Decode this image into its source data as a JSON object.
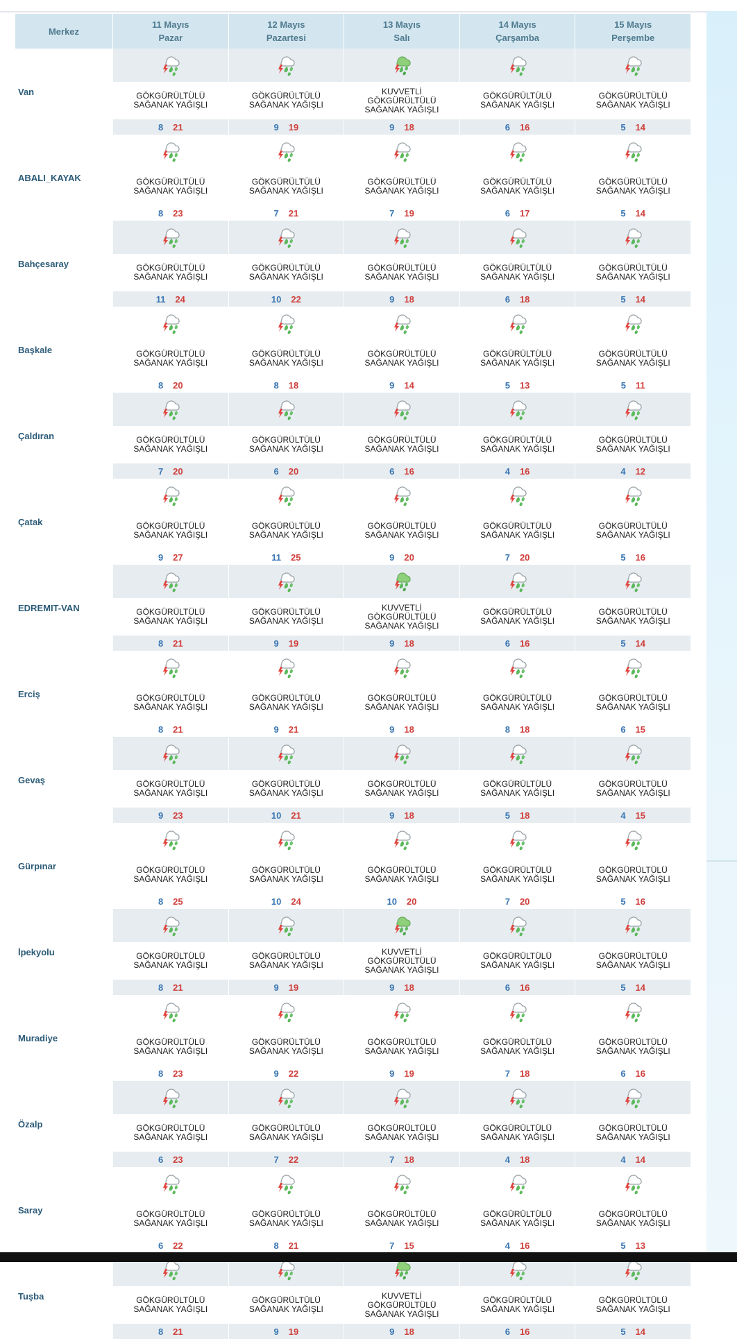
{
  "header": {
    "merkez": "Merkez",
    "days": [
      {
        "date": "11 Mayıs",
        "weekday": "Pazar"
      },
      {
        "date": "12 Mayıs",
        "weekday": "Pazartesi"
      },
      {
        "date": "13 Mayıs",
        "weekday": "Salı"
      },
      {
        "date": "14 Mayıs",
        "weekday": "Çarşamba"
      },
      {
        "date": "15 Mayıs",
        "weekday": "Perşembe"
      }
    ]
  },
  "icons": {
    "thunder": "thunderstorm-showers-icon",
    "strong": "strong-thunderstorm-icon"
  },
  "colors": {
    "min": "#3a77b3",
    "max": "#d0403c",
    "header_bg": "#d3e6ef",
    "shade": "#e6ecf0"
  },
  "rows": [
    {
      "city": "Van",
      "days": [
        {
          "l1": "GÖKGÜRÜLTÜLÜ",
          "l2": "SAĞANAK YAĞIŞLI",
          "l3": "",
          "min": "8",
          "max": "21",
          "icon": "thunder"
        },
        {
          "l1": "GÖKGÜRÜLTÜLÜ",
          "l2": "SAĞANAK YAĞIŞLI",
          "l3": "",
          "min": "9",
          "max": "19",
          "icon": "thunder"
        },
        {
          "l1": "KUVVETLİ",
          "l2": "GÖKGÜRÜLTÜLÜ",
          "l3": "SAĞANAK YAĞIŞLI",
          "min": "9",
          "max": "18",
          "icon": "strong"
        },
        {
          "l1": "GÖKGÜRÜLTÜLÜ",
          "l2": "SAĞANAK YAĞIŞLI",
          "l3": "",
          "min": "6",
          "max": "16",
          "icon": "thunder"
        },
        {
          "l1": "GÖKGÜRÜLTÜLÜ",
          "l2": "SAĞANAK YAĞIŞLI",
          "l3": "",
          "min": "5",
          "max": "14",
          "icon": "thunder"
        }
      ]
    },
    {
      "city": "ABALI_KAYAK",
      "days": [
        {
          "l1": "GÖKGÜRÜLTÜLÜ",
          "l2": "SAĞANAK YAĞIŞLI",
          "l3": "",
          "min": "8",
          "max": "23",
          "icon": "thunder"
        },
        {
          "l1": "GÖKGÜRÜLTÜLÜ",
          "l2": "SAĞANAK YAĞIŞLI",
          "l3": "",
          "min": "7",
          "max": "21",
          "icon": "thunder"
        },
        {
          "l1": "GÖKGÜRÜLTÜLÜ",
          "l2": "SAĞANAK YAĞIŞLI",
          "l3": "",
          "min": "7",
          "max": "19",
          "icon": "thunder"
        },
        {
          "l1": "GÖKGÜRÜLTÜLÜ",
          "l2": "SAĞANAK YAĞIŞLI",
          "l3": "",
          "min": "6",
          "max": "17",
          "icon": "thunder"
        },
        {
          "l1": "GÖKGÜRÜLTÜLÜ",
          "l2": "SAĞANAK YAĞIŞLI",
          "l3": "",
          "min": "5",
          "max": "14",
          "icon": "thunder"
        }
      ]
    },
    {
      "city": "Bahçesaray",
      "days": [
        {
          "l1": "GÖKGÜRÜLTÜLÜ",
          "l2": "SAĞANAK YAĞIŞLI",
          "l3": "",
          "min": "11",
          "max": "24",
          "icon": "thunder"
        },
        {
          "l1": "GÖKGÜRÜLTÜLÜ",
          "l2": "SAĞANAK YAĞIŞLI",
          "l3": "",
          "min": "10",
          "max": "22",
          "icon": "thunder"
        },
        {
          "l1": "GÖKGÜRÜLTÜLÜ",
          "l2": "SAĞANAK YAĞIŞLI",
          "l3": "",
          "min": "9",
          "max": "18",
          "icon": "thunder"
        },
        {
          "l1": "GÖKGÜRÜLTÜLÜ",
          "l2": "SAĞANAK YAĞIŞLI",
          "l3": "",
          "min": "6",
          "max": "18",
          "icon": "thunder"
        },
        {
          "l1": "GÖKGÜRÜLTÜLÜ",
          "l2": "SAĞANAK YAĞIŞLI",
          "l3": "",
          "min": "5",
          "max": "14",
          "icon": "thunder"
        }
      ]
    },
    {
      "city": "Başkale",
      "days": [
        {
          "l1": "GÖKGÜRÜLTÜLÜ",
          "l2": "SAĞANAK YAĞIŞLI",
          "l3": "",
          "min": "8",
          "max": "20",
          "icon": "thunder"
        },
        {
          "l1": "GÖKGÜRÜLTÜLÜ",
          "l2": "SAĞANAK YAĞIŞLI",
          "l3": "",
          "min": "8",
          "max": "18",
          "icon": "thunder"
        },
        {
          "l1": "GÖKGÜRÜLTÜLÜ",
          "l2": "SAĞANAK YAĞIŞLI",
          "l3": "",
          "min": "9",
          "max": "14",
          "icon": "thunder"
        },
        {
          "l1": "GÖKGÜRÜLTÜLÜ",
          "l2": "SAĞANAK YAĞIŞLI",
          "l3": "",
          "min": "5",
          "max": "13",
          "icon": "thunder"
        },
        {
          "l1": "GÖKGÜRÜLTÜLÜ",
          "l2": "SAĞANAK YAĞIŞLI",
          "l3": "",
          "min": "5",
          "max": "11",
          "icon": "thunder"
        }
      ]
    },
    {
      "city": "Çaldıran",
      "days": [
        {
          "l1": "GÖKGÜRÜLTÜLÜ",
          "l2": "SAĞANAK YAĞIŞLI",
          "l3": "",
          "min": "7",
          "max": "20",
          "icon": "thunder"
        },
        {
          "l1": "GÖKGÜRÜLTÜLÜ",
          "l2": "SAĞANAK YAĞIŞLI",
          "l3": "",
          "min": "6",
          "max": "20",
          "icon": "thunder"
        },
        {
          "l1": "GÖKGÜRÜLTÜLÜ",
          "l2": "SAĞANAK YAĞIŞLI",
          "l3": "",
          "min": "6",
          "max": "16",
          "icon": "thunder"
        },
        {
          "l1": "GÖKGÜRÜLTÜLÜ",
          "l2": "SAĞANAK YAĞIŞLI",
          "l3": "",
          "min": "4",
          "max": "16",
          "icon": "thunder"
        },
        {
          "l1": "GÖKGÜRÜLTÜLÜ",
          "l2": "SAĞANAK YAĞIŞLI",
          "l3": "",
          "min": "4",
          "max": "12",
          "icon": "thunder"
        }
      ]
    },
    {
      "city": "Çatak",
      "days": [
        {
          "l1": "GÖKGÜRÜLTÜLÜ",
          "l2": "SAĞANAK YAĞIŞLI",
          "l3": "",
          "min": "9",
          "max": "27",
          "icon": "thunder"
        },
        {
          "l1": "GÖKGÜRÜLTÜLÜ",
          "l2": "SAĞANAK YAĞIŞLI",
          "l3": "",
          "min": "11",
          "max": "25",
          "icon": "thunder"
        },
        {
          "l1": "GÖKGÜRÜLTÜLÜ",
          "l2": "SAĞANAK YAĞIŞLI",
          "l3": "",
          "min": "9",
          "max": "20",
          "icon": "thunder"
        },
        {
          "l1": "GÖKGÜRÜLTÜLÜ",
          "l2": "SAĞANAK YAĞIŞLI",
          "l3": "",
          "min": "7",
          "max": "20",
          "icon": "thunder"
        },
        {
          "l1": "GÖKGÜRÜLTÜLÜ",
          "l2": "SAĞANAK YAĞIŞLI",
          "l3": "",
          "min": "5",
          "max": "16",
          "icon": "thunder"
        }
      ]
    },
    {
      "city": "EDREMIT-VAN",
      "days": [
        {
          "l1": "GÖKGÜRÜLTÜLÜ",
          "l2": "SAĞANAK YAĞIŞLI",
          "l3": "",
          "min": "8",
          "max": "21",
          "icon": "thunder"
        },
        {
          "l1": "GÖKGÜRÜLTÜLÜ",
          "l2": "SAĞANAK YAĞIŞLI",
          "l3": "",
          "min": "9",
          "max": "19",
          "icon": "thunder"
        },
        {
          "l1": "KUVVETLİ",
          "l2": "GÖKGÜRÜLTÜLÜ",
          "l3": "SAĞANAK YAĞIŞLI",
          "min": "9",
          "max": "18",
          "icon": "strong"
        },
        {
          "l1": "GÖKGÜRÜLTÜLÜ",
          "l2": "SAĞANAK YAĞIŞLI",
          "l3": "",
          "min": "6",
          "max": "16",
          "icon": "thunder"
        },
        {
          "l1": "GÖKGÜRÜLTÜLÜ",
          "l2": "SAĞANAK YAĞIŞLI",
          "l3": "",
          "min": "5",
          "max": "14",
          "icon": "thunder"
        }
      ]
    },
    {
      "city": "Erciş",
      "days": [
        {
          "l1": "GÖKGÜRÜLTÜLÜ",
          "l2": "SAĞANAK YAĞIŞLI",
          "l3": "",
          "min": "8",
          "max": "21",
          "icon": "thunder"
        },
        {
          "l1": "GÖKGÜRÜLTÜLÜ",
          "l2": "SAĞANAK YAĞIŞLI",
          "l3": "",
          "min": "9",
          "max": "21",
          "icon": "thunder"
        },
        {
          "l1": "GÖKGÜRÜLTÜLÜ",
          "l2": "SAĞANAK YAĞIŞLI",
          "l3": "",
          "min": "9",
          "max": "18",
          "icon": "thunder"
        },
        {
          "l1": "GÖKGÜRÜLTÜLÜ",
          "l2": "SAĞANAK YAĞIŞLI",
          "l3": "",
          "min": "8",
          "max": "18",
          "icon": "thunder"
        },
        {
          "l1": "GÖKGÜRÜLTÜLÜ",
          "l2": "SAĞANAK YAĞIŞLI",
          "l3": "",
          "min": "6",
          "max": "15",
          "icon": "thunder"
        }
      ]
    },
    {
      "city": "Gevaş",
      "days": [
        {
          "l1": "GÖKGÜRÜLTÜLÜ",
          "l2": "SAĞANAK YAĞIŞLI",
          "l3": "",
          "min": "9",
          "max": "23",
          "icon": "thunder"
        },
        {
          "l1": "GÖKGÜRÜLTÜLÜ",
          "l2": "SAĞANAK YAĞIŞLI",
          "l3": "",
          "min": "10",
          "max": "21",
          "icon": "thunder"
        },
        {
          "l1": "GÖKGÜRÜLTÜLÜ",
          "l2": "SAĞANAK YAĞIŞLI",
          "l3": "",
          "min": "9",
          "max": "18",
          "icon": "thunder"
        },
        {
          "l1": "GÖKGÜRÜLTÜLÜ",
          "l2": "SAĞANAK YAĞIŞLI",
          "l3": "",
          "min": "5",
          "max": "18",
          "icon": "thunder"
        },
        {
          "l1": "GÖKGÜRÜLTÜLÜ",
          "l2": "SAĞANAK YAĞIŞLI",
          "l3": "",
          "min": "4",
          "max": "15",
          "icon": "thunder"
        }
      ]
    },
    {
      "city": "Gürpınar",
      "days": [
        {
          "l1": "GÖKGÜRÜLTÜLÜ",
          "l2": "SAĞANAK YAĞIŞLI",
          "l3": "",
          "min": "8",
          "max": "25",
          "icon": "thunder"
        },
        {
          "l1": "GÖKGÜRÜLTÜLÜ",
          "l2": "SAĞANAK YAĞIŞLI",
          "l3": "",
          "min": "10",
          "max": "24",
          "icon": "thunder"
        },
        {
          "l1": "GÖKGÜRÜLTÜLÜ",
          "l2": "SAĞANAK YAĞIŞLI",
          "l3": "",
          "min": "10",
          "max": "20",
          "icon": "thunder"
        },
        {
          "l1": "GÖKGÜRÜLTÜLÜ",
          "l2": "SAĞANAK YAĞIŞLI",
          "l3": "",
          "min": "7",
          "max": "20",
          "icon": "thunder"
        },
        {
          "l1": "GÖKGÜRÜLTÜLÜ",
          "l2": "SAĞANAK YAĞIŞLI",
          "l3": "",
          "min": "5",
          "max": "16",
          "icon": "thunder"
        }
      ]
    },
    {
      "city": "İpekyolu",
      "days": [
        {
          "l1": "GÖKGÜRÜLTÜLÜ",
          "l2": "SAĞANAK YAĞIŞLI",
          "l3": "",
          "min": "8",
          "max": "21",
          "icon": "thunder"
        },
        {
          "l1": "GÖKGÜRÜLTÜLÜ",
          "l2": "SAĞANAK YAĞIŞLI",
          "l3": "",
          "min": "9",
          "max": "19",
          "icon": "thunder"
        },
        {
          "l1": "KUVVETLİ",
          "l2": "GÖKGÜRÜLTÜLÜ",
          "l3": "SAĞANAK YAĞIŞLI",
          "min": "9",
          "max": "18",
          "icon": "strong"
        },
        {
          "l1": "GÖKGÜRÜLTÜLÜ",
          "l2": "SAĞANAK YAĞIŞLI",
          "l3": "",
          "min": "6",
          "max": "16",
          "icon": "thunder"
        },
        {
          "l1": "GÖKGÜRÜLTÜLÜ",
          "l2": "SAĞANAK YAĞIŞLI",
          "l3": "",
          "min": "5",
          "max": "14",
          "icon": "thunder"
        }
      ]
    },
    {
      "city": "Muradiye",
      "days": [
        {
          "l1": "GÖKGÜRÜLTÜLÜ",
          "l2": "SAĞANAK YAĞIŞLI",
          "l3": "",
          "min": "8",
          "max": "23",
          "icon": "thunder"
        },
        {
          "l1": "GÖKGÜRÜLTÜLÜ",
          "l2": "SAĞANAK YAĞIŞLI",
          "l3": "",
          "min": "9",
          "max": "22",
          "icon": "thunder"
        },
        {
          "l1": "GÖKGÜRÜLTÜLÜ",
          "l2": "SAĞANAK YAĞIŞLI",
          "l3": "",
          "min": "9",
          "max": "19",
          "icon": "thunder"
        },
        {
          "l1": "GÖKGÜRÜLTÜLÜ",
          "l2": "SAĞANAK YAĞIŞLI",
          "l3": "",
          "min": "7",
          "max": "18",
          "icon": "thunder"
        },
        {
          "l1": "GÖKGÜRÜLTÜLÜ",
          "l2": "SAĞANAK YAĞIŞLI",
          "l3": "",
          "min": "6",
          "max": "16",
          "icon": "thunder"
        }
      ]
    },
    {
      "city": "Özalp",
      "days": [
        {
          "l1": "GÖKGÜRÜLTÜLÜ",
          "l2": "SAĞANAK YAĞIŞLI",
          "l3": "",
          "min": "6",
          "max": "23",
          "icon": "thunder"
        },
        {
          "l1": "GÖKGÜRÜLTÜLÜ",
          "l2": "SAĞANAK YAĞIŞLI",
          "l3": "",
          "min": "7",
          "max": "22",
          "icon": "thunder"
        },
        {
          "l1": "GÖKGÜRÜLTÜLÜ",
          "l2": "SAĞANAK YAĞIŞLI",
          "l3": "",
          "min": "7",
          "max": "18",
          "icon": "thunder"
        },
        {
          "l1": "GÖKGÜRÜLTÜLÜ",
          "l2": "SAĞANAK YAĞIŞLI",
          "l3": "",
          "min": "4",
          "max": "18",
          "icon": "thunder"
        },
        {
          "l1": "GÖKGÜRÜLTÜLÜ",
          "l2": "SAĞANAK YAĞIŞLI",
          "l3": "",
          "min": "4",
          "max": "14",
          "icon": "thunder"
        }
      ]
    },
    {
      "city": "Saray",
      "days": [
        {
          "l1": "GÖKGÜRÜLTÜLÜ",
          "l2": "SAĞANAK YAĞIŞLI",
          "l3": "",
          "min": "6",
          "max": "22",
          "icon": "thunder"
        },
        {
          "l1": "GÖKGÜRÜLTÜLÜ",
          "l2": "SAĞANAK YAĞIŞLI",
          "l3": "",
          "min": "8",
          "max": "21",
          "icon": "thunder"
        },
        {
          "l1": "GÖKGÜRÜLTÜLÜ",
          "l2": "SAĞANAK YAĞIŞLI",
          "l3": "",
          "min": "7",
          "max": "15",
          "icon": "thunder"
        },
        {
          "l1": "GÖKGÜRÜLTÜLÜ",
          "l2": "SAĞANAK YAĞIŞLI",
          "l3": "",
          "min": "4",
          "max": "16",
          "icon": "thunder"
        },
        {
          "l1": "GÖKGÜRÜLTÜLÜ",
          "l2": "SAĞANAK YAĞIŞLI",
          "l3": "",
          "min": "5",
          "max": "13",
          "icon": "thunder"
        }
      ]
    },
    {
      "city": "Tuşba",
      "days": [
        {
          "l1": "GÖKGÜRÜLTÜLÜ",
          "l2": "SAĞANAK YAĞIŞLI",
          "l3": "",
          "min": "8",
          "max": "21",
          "icon": "thunder"
        },
        {
          "l1": "GÖKGÜRÜLTÜLÜ",
          "l2": "SAĞANAK YAĞIŞLI",
          "l3": "",
          "min": "9",
          "max": "19",
          "icon": "thunder"
        },
        {
          "l1": "KUVVETLİ",
          "l2": "GÖKGÜRÜLTÜLÜ",
          "l3": "SAĞANAK YAĞIŞLI",
          "min": "9",
          "max": "18",
          "icon": "strong"
        },
        {
          "l1": "GÖKGÜRÜLTÜLÜ",
          "l2": "SAĞANAK YAĞIŞLI",
          "l3": "",
          "min": "6",
          "max": "16",
          "icon": "thunder"
        },
        {
          "l1": "GÖKGÜRÜLTÜLÜ",
          "l2": "SAĞANAK YAĞIŞLI",
          "l3": "",
          "min": "5",
          "max": "14",
          "icon": "thunder"
        }
      ]
    }
  ]
}
